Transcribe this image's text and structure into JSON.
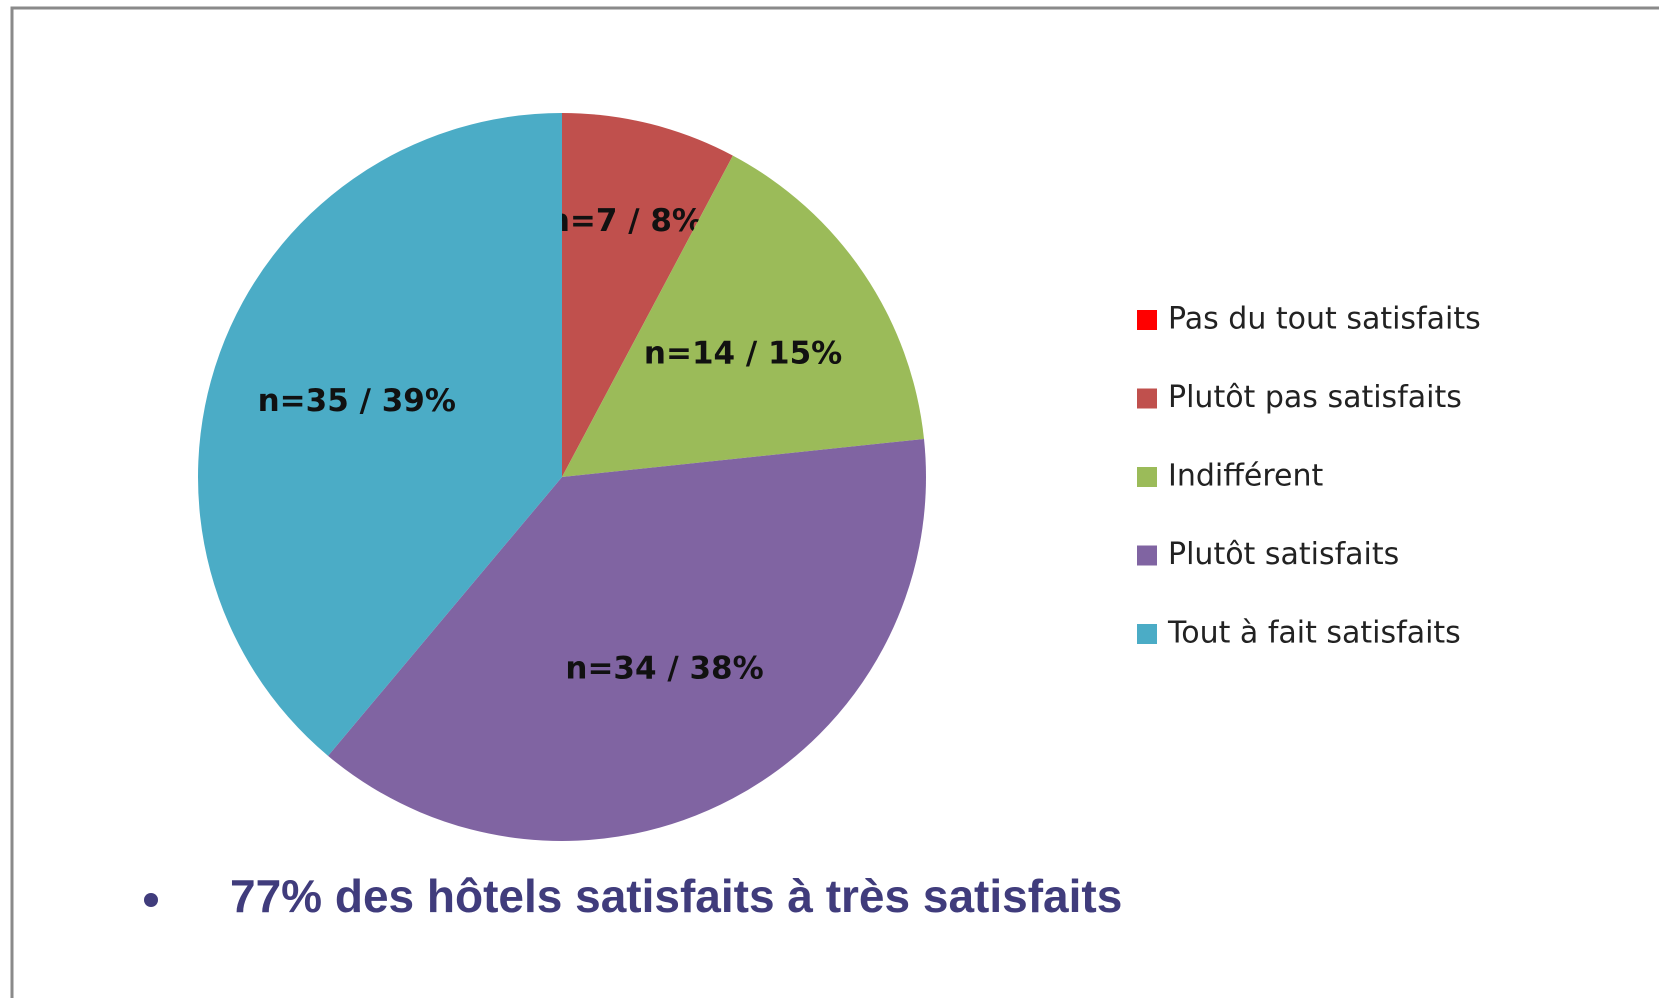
{
  "chart_data": {
    "type": "pie",
    "categories": [
      "Pas du tout satisfaits",
      "Plutôt pas satisfaits",
      "Indifférent",
      "Plutôt satisfaits",
      "Tout à fait satisfaits"
    ],
    "values": [
      0,
      7,
      14,
      34,
      35
    ],
    "value_labels": [
      null,
      "n=7 / 8%",
      "n=14 / 15%",
      "n=34 / 38%",
      "n=35 / 39%"
    ],
    "colors": [
      "#ff0000",
      "#c0504d",
      "#9bbb59",
      "#8064a2",
      "#4bacc6"
    ],
    "legend": "right"
  },
  "footer": "77% des hôtels satisfaits à très satisfaits"
}
